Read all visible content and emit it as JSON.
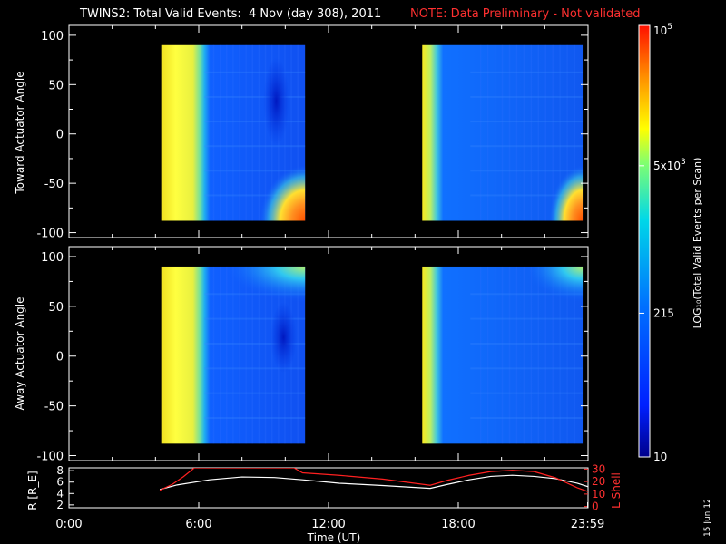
{
  "title": "TWINS2: Total Valid Events:  4 Nov (day 308), 2011",
  "note": "NOTE: Data Preliminary - Not validated",
  "stamp": "15 Jun 12",
  "colors": {
    "background": "#000000",
    "axis": "#ffffff",
    "note": "#ff3030",
    "r_line": "#ffffff",
    "lshell_line": "#ff2020"
  },
  "chart_data": [
    {
      "type": "heatmap",
      "ylabel": "Toward Actuator Angle",
      "ylim": [
        -105,
        110
      ],
      "yticks": [
        "100",
        "50",
        "0",
        "-50",
        "-100"
      ],
      "xlim_hours": [
        0,
        24
      ],
      "data_blocks_ut": [
        [
          "4:16",
          "10:55"
        ],
        [
          "16:20",
          "23:45"
        ]
      ],
      "angle_range": [
        -88,
        90
      ]
    },
    {
      "type": "heatmap",
      "ylabel": "Away Actuator Angle",
      "ylim": [
        -105,
        110
      ],
      "yticks": [
        "100",
        "50",
        "0",
        "-50",
        "-100"
      ],
      "xlim_hours": [
        0,
        24
      ],
      "data_blocks_ut": [
        [
          "4:16",
          "10:55"
        ],
        [
          "16:20",
          "23:45"
        ]
      ],
      "angle_range": [
        -88,
        90
      ]
    },
    {
      "type": "line",
      "xlabel": "Time (UT)",
      "xticks": [
        "0:00",
        "6:00",
        "12:00",
        "18:00",
        "23:59"
      ],
      "ylabel_left": "R [R_E]",
      "ylabel_right": "L Shell",
      "yticks_left": [
        "8",
        "6",
        "4",
        "2"
      ],
      "yticks_right": [
        "30",
        "20",
        "10",
        "0"
      ],
      "ylim_left": [
        1.5,
        8.5
      ],
      "ylim_right": [
        -1,
        31
      ],
      "series": [
        {
          "name": "R",
          "x_hours": [
            4.2,
            5.0,
            6.5,
            8.0,
            9.5,
            10.8,
            12.5,
            14.5,
            16.7,
            17.5,
            18.5,
            19.5,
            20.5,
            21.5,
            22.5,
            23.5,
            24.0
          ],
          "values": [
            4.7,
            5.5,
            6.4,
            6.9,
            6.8,
            6.4,
            5.8,
            5.4,
            4.9,
            5.6,
            6.4,
            7.0,
            7.2,
            7.0,
            6.6,
            5.8,
            5.2
          ]
        },
        {
          "name": "L Shell",
          "x_hours": [
            4.2,
            4.8,
            5.3,
            5.8,
            10.4,
            10.8,
            12.5,
            14.5,
            16.7,
            17.5,
            18.5,
            19.5,
            20.5,
            21.5,
            22.5,
            23.5,
            24.0
          ],
          "values": [
            13,
            18,
            24,
            31,
            31,
            27,
            25,
            22,
            17,
            21,
            25,
            28,
            29,
            28,
            23,
            15,
            12
          ]
        }
      ]
    }
  ],
  "colorbar": {
    "label": "LOG₁₀(Total Valid Events per Scan)",
    "ticks": [
      {
        "base": "10",
        "sup": "5",
        "value": 100000
      },
      {
        "base": "5x10",
        "sup": "3",
        "value": 5000
      },
      {
        "base": "215",
        "sup": "",
        "value": 215
      },
      {
        "base": "10",
        "sup": "",
        "value": 10
      }
    ],
    "range": [
      10,
      100000
    ]
  }
}
